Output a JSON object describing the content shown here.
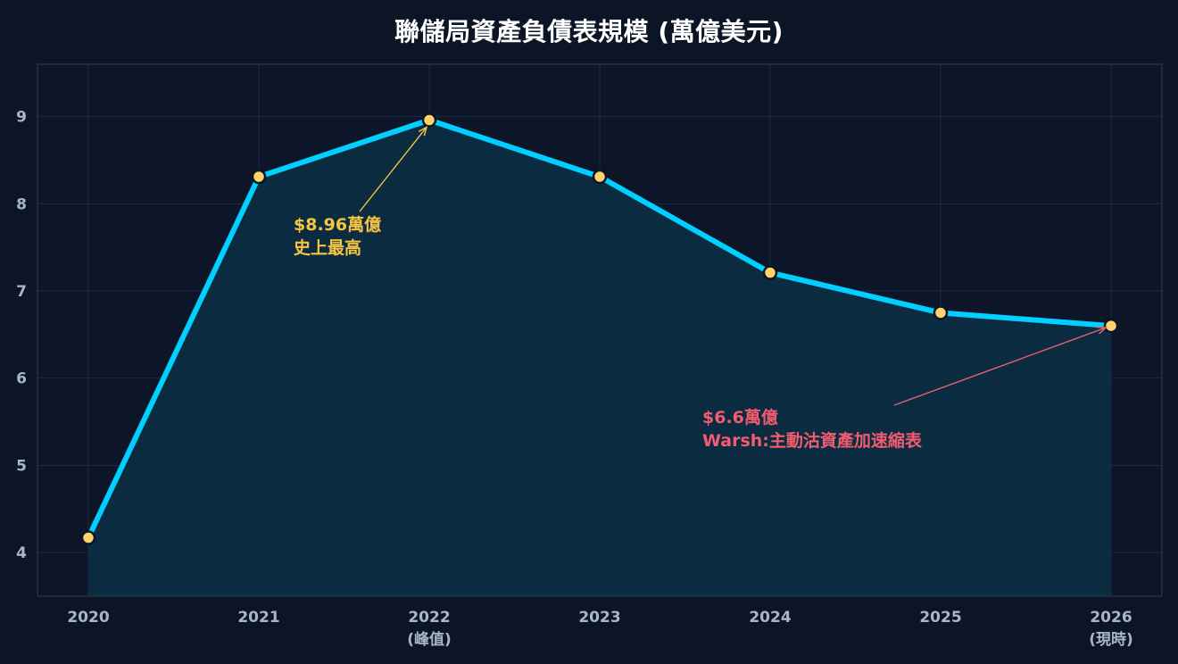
{
  "chart_data": {
    "type": "line",
    "title": "聯儲局資產負債表規模 (萬億美元)",
    "xlabel": "",
    "ylabel": "",
    "x": [
      "2020",
      "2021",
      "2022",
      "2023",
      "2024",
      "2025",
      "2026"
    ],
    "x_sublabels": [
      "",
      "",
      "(峰值)",
      "",
      "",
      "",
      "(現時)"
    ],
    "series": [
      {
        "values": [
          4.17,
          8.31,
          8.96,
          8.31,
          7.21,
          6.75,
          6.6
        ]
      }
    ],
    "yticks": [
      "4",
      "5",
      "6",
      "7",
      "8",
      "9"
    ],
    "ylim": [
      3.5,
      9.6
    ],
    "grid": true,
    "fill_under": true,
    "annotations": [
      {
        "text_lines": [
          "$8.96萬億",
          "史上最高"
        ],
        "target": 2,
        "color": "#f5c542"
      },
      {
        "text_lines": [
          "$6.6萬億",
          "Warsh:主動沽資產加速縮表"
        ],
        "target": 6,
        "color": "#f25c6e"
      }
    ],
    "colors": {
      "line": "#00cfff",
      "marker_fill": "#ffd36b",
      "marker_edge": "#0b1526",
      "area": "#0b2d44",
      "grid": "#1c2b42",
      "background": "#0b1526",
      "plot_background": "#0c1628",
      "frame": "#2a3850"
    }
  }
}
